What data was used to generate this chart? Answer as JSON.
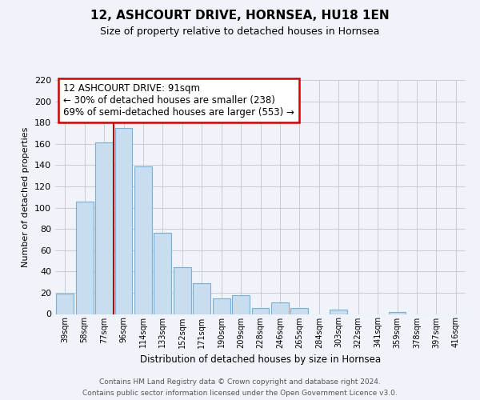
{
  "title": "12, ASHCOURT DRIVE, HORNSEA, HU18 1EN",
  "subtitle": "Size of property relative to detached houses in Hornsea",
  "xlabel": "Distribution of detached houses by size in Hornsea",
  "ylabel": "Number of detached properties",
  "categories": [
    "39sqm",
    "58sqm",
    "77sqm",
    "96sqm",
    "114sqm",
    "133sqm",
    "152sqm",
    "171sqm",
    "190sqm",
    "209sqm",
    "228sqm",
    "246sqm",
    "265sqm",
    "284sqm",
    "303sqm",
    "322sqm",
    "341sqm",
    "359sqm",
    "378sqm",
    "397sqm",
    "416sqm"
  ],
  "values": [
    19,
    106,
    161,
    175,
    139,
    76,
    44,
    29,
    15,
    18,
    6,
    11,
    6,
    0,
    4,
    0,
    0,
    2,
    0,
    0,
    0
  ],
  "bar_color": "#c8ddf0",
  "bar_edge_color": "#7aafd4",
  "vline_color": "#cc0000",
  "vline_x": 2.5,
  "annotation_title": "12 ASHCOURT DRIVE: 91sqm",
  "annotation_line1": "← 30% of detached houses are smaller (238)",
  "annotation_line2": "69% of semi-detached houses are larger (553) →",
  "annotation_box_color": "#ffffff",
  "annotation_box_edge": "#cc0000",
  "ylim": [
    0,
    220
  ],
  "yticks": [
    0,
    20,
    40,
    60,
    80,
    100,
    120,
    140,
    160,
    180,
    200,
    220
  ],
  "footer_line1": "Contains HM Land Registry data © Crown copyright and database right 2024.",
  "footer_line2": "Contains public sector information licensed under the Open Government Licence v3.0.",
  "bg_color": "#f0f4fa"
}
